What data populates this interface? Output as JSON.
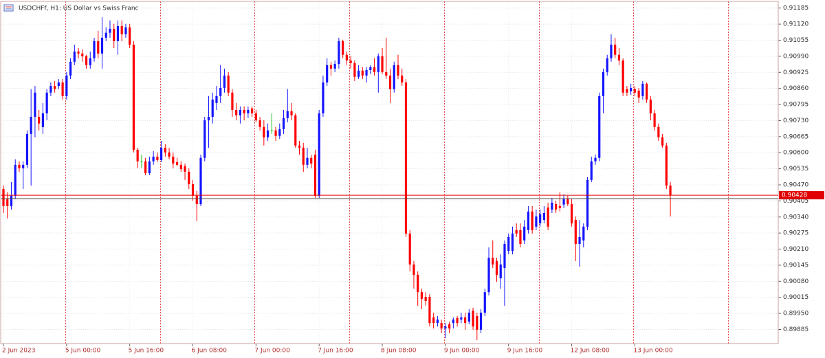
{
  "chart_data": {
    "type": "candlestick",
    "title": "USDCHFf, H1:  US Dollar vs Swiss Franc",
    "categories": [
      "2 Jun 2023",
      null,
      null,
      null,
      null,
      null,
      null,
      null,
      null,
      null,
      null,
      null,
      null,
      null,
      null,
      null,
      "5 Jun 00:00",
      null,
      null,
      null,
      null,
      null,
      null,
      null,
      null,
      null,
      null,
      null,
      null,
      null,
      null,
      null,
      "5 Jun 16:00",
      null,
      null,
      null,
      null,
      null,
      null,
      null,
      null,
      null,
      null,
      null,
      null,
      null,
      null,
      null,
      "6 Jun 08:00",
      null,
      null,
      null,
      null,
      null,
      null,
      null,
      null,
      null,
      null,
      null,
      null,
      null,
      null,
      null,
      "7 Jun 00:00",
      null,
      null,
      null,
      null,
      null,
      null,
      null,
      null,
      null,
      null,
      null,
      null,
      null,
      null,
      null,
      "7 Jun 16:00",
      null,
      null,
      null,
      null,
      null,
      null,
      null,
      null,
      null,
      null,
      null,
      null,
      null,
      null,
      null,
      "8 Jun 08:00",
      null,
      null,
      null,
      null,
      null,
      null,
      null,
      null,
      null,
      null,
      null,
      null,
      null,
      null,
      null,
      "9 Jun 00:00",
      null,
      null,
      null,
      null,
      null,
      null,
      null,
      null,
      null,
      null,
      null,
      null,
      null,
      null,
      null,
      "9 Jun 16:00",
      null,
      null,
      null,
      null,
      null,
      null,
      null,
      null,
      null,
      null,
      null,
      null,
      null,
      null,
      null,
      "12 Jun 08:00",
      null,
      null,
      null,
      null,
      null,
      null,
      null,
      null,
      null,
      null,
      null,
      null,
      null,
      null,
      null,
      "13 Jun 00:00",
      null,
      null,
      null,
      null,
      null,
      null,
      null,
      null,
      null
    ],
    "open": [
      0.90453,
      0.90412,
      0.90384,
      0.90426,
      0.90551,
      0.90537,
      0.90551,
      0.90676,
      0.90745,
      0.90745,
      0.90704,
      0.90759,
      0.90843,
      0.9087,
      0.9087,
      0.90884,
      0.90829,
      0.90912,
      0.90968,
      0.91009,
      0.91001,
      0.9099,
      0.90954,
      0.90982,
      0.91051,
      0.91001,
      0.91065,
      0.91085,
      0.91101,
      0.91051,
      0.91112,
      0.91079,
      0.91107,
      0.91037,
      0.90612,
      0.90565,
      0.90565,
      0.90517,
      0.90565,
      0.90584,
      0.9057,
      0.9062,
      0.90601,
      0.90584,
      0.90562,
      0.90551,
      0.90545,
      0.90523,
      0.90473,
      0.90426,
      0.90392,
      0.90579,
      0.90731,
      0.90745,
      0.90801,
      0.90829,
      0.90862,
      0.90912,
      0.90843,
      0.90773,
      0.90751,
      0.90773,
      0.90759,
      0.90779,
      0.90759,
      0.90731,
      0.90704,
      0.90662,
      0.9069,
      0.9069,
      0.90668,
      0.90695,
      0.9074,
      0.90768,
      0.90751,
      0.90629,
      0.9062,
      0.90551,
      0.90579,
      0.90592,
      0.90426,
      0.90759,
      0.90884,
      0.90954,
      0.9094,
      0.90959,
      0.91051,
      0.90996,
      0.90973,
      0.90962,
      0.90907,
      0.90932,
      0.90912,
      0.90934,
      0.90946,
      0.90926,
      0.9099,
      0.90926,
      0.90912,
      0.90857,
      0.90954,
      0.90912,
      0.90884,
      0.90273,
      0.90148,
      0.90106,
      0.90036,
      0.90017,
      0.90017,
      0.89934,
      0.89911,
      0.89911,
      0.89889,
      0.89906,
      0.89911,
      0.89931,
      0.89925,
      0.89934,
      0.89917,
      0.89961,
      0.89939,
      0.89884,
      0.89953,
      0.90036,
      0.90175,
      0.90162,
      0.90092,
      0.90134,
      0.90203,
      0.90203,
      0.90287,
      0.90287,
      0.90245,
      0.90287,
      0.90362,
      0.90301,
      0.90314,
      0.90328,
      0.90378,
      0.9037,
      0.90392,
      0.90384,
      0.9039,
      0.90412,
      0.90392,
      0.90328,
      0.90231,
      0.90245,
      0.90301,
      0.9049,
      0.90565,
      0.90579,
      0.90829,
      0.90926,
      0.90982,
      0.91037,
      0.90996,
      0.90973,
      0.90857,
      0.90848,
      0.90857,
      0.90851,
      0.90829,
      0.90879,
      0.90815,
      0.90759,
      0.90704,
      0.90662,
      0.90629,
      0.90467
    ],
    "high": [
      0.90467,
      0.9044,
      0.90481,
      0.90573,
      0.90565,
      0.90565,
      0.9069,
      0.90857,
      0.9087,
      0.90773,
      0.90801,
      0.90857,
      0.90884,
      0.9089,
      0.90898,
      0.90898,
      0.90926,
      0.90982,
      0.91037,
      0.91023,
      0.91018,
      0.90996,
      0.91009,
      0.91065,
      0.91093,
      0.91148,
      0.91107,
      0.91135,
      0.91121,
      0.91135,
      0.91135,
      0.91121,
      0.91121,
      0.91051,
      0.9062,
      0.90592,
      0.90579,
      0.90584,
      0.90606,
      0.90601,
      0.90648,
      0.90634,
      0.9062,
      0.90601,
      0.90579,
      0.90565,
      0.90556,
      0.90537,
      0.9049,
      0.90445,
      0.90592,
      0.90745,
      0.90829,
      0.90843,
      0.9087,
      0.90954,
      0.9094,
      0.90926,
      0.90857,
      0.90801,
      0.90787,
      0.90787,
      0.90787,
      0.90787,
      0.90773,
      0.90745,
      0.90731,
      0.90718,
      0.90759,
      0.90704,
      0.90718,
      0.90773,
      0.90857,
      0.90801,
      0.90759,
      0.90648,
      0.9064,
      0.9062,
      0.90592,
      0.90612,
      0.90773,
      0.90912,
      0.90982,
      0.90968,
      0.90973,
      0.91065,
      0.91057,
      0.91009,
      0.9099,
      0.90973,
      0.90954,
      0.90946,
      0.90946,
      0.90954,
      0.90982,
      0.91001,
      0.91023,
      0.91065,
      0.9094,
      0.90968,
      0.90996,
      0.9094,
      0.90898,
      0.90287,
      0.90162,
      0.9012,
      0.9005,
      0.90036,
      0.90028,
      0.89953,
      0.89939,
      0.89925,
      0.89911,
      0.89917,
      0.89934,
      0.89939,
      0.89953,
      0.89953,
      0.89967,
      0.89973,
      0.89953,
      0.89967,
      0.9005,
      0.90217,
      0.90245,
      0.90175,
      0.90189,
      0.90245,
      0.90273,
      0.90301,
      0.90314,
      0.90314,
      0.90328,
      0.90384,
      0.90384,
      0.9037,
      0.9037,
      0.90384,
      0.90398,
      0.90417,
      0.90406,
      0.9044,
      0.90431,
      0.90426,
      0.90412,
      0.90342,
      0.90328,
      0.90314,
      0.90501,
      0.90584,
      0.90592,
      0.90843,
      0.9094,
      0.90996,
      0.91079,
      0.91065,
      0.91023,
      0.90982,
      0.9087,
      0.90879,
      0.9087,
      0.90862,
      0.9089,
      0.90884,
      0.90829,
      0.90773,
      0.90718,
      0.90676,
      0.9064,
      0.90481
    ],
    "low": [
      0.90356,
      0.90334,
      0.9037,
      0.90412,
      0.90523,
      0.90453,
      0.90537,
      0.90467,
      0.90662,
      0.9069,
      0.90676,
      0.90731,
      0.90829,
      0.90843,
      0.90857,
      0.90815,
      0.90815,
      0.90898,
      0.90954,
      0.90982,
      0.90968,
      0.9094,
      0.9094,
      0.90968,
      0.90982,
      0.9094,
      0.91051,
      0.91065,
      0.91023,
      0.90996,
      0.91051,
      0.91065,
      0.91023,
      0.90601,
      0.90537,
      0.90537,
      0.90509,
      0.90509,
      0.90551,
      0.90562,
      0.90562,
      0.90584,
      0.90573,
      0.90537,
      0.90545,
      0.90523,
      0.9049,
      0.90453,
      0.90406,
      0.90323,
      0.90384,
      0.90565,
      0.9062,
      0.90718,
      0.90773,
      0.90801,
      0.90843,
      0.90829,
      0.90745,
      0.90731,
      0.90718,
      0.90731,
      0.9074,
      0.90745,
      0.90723,
      0.9069,
      0.90629,
      0.90648,
      0.90676,
      0.90648,
      0.90656,
      0.90676,
      0.90723,
      0.90731,
      0.9062,
      0.90592,
      0.90523,
      0.90537,
      0.90537,
      0.90417,
      0.90417,
      0.90745,
      0.9087,
      0.90912,
      0.90926,
      0.9094,
      0.90982,
      0.90954,
      0.9094,
      0.9089,
      0.90898,
      0.90898,
      0.90884,
      0.90918,
      0.90912,
      0.90843,
      0.90918,
      0.90898,
      0.90801,
      0.90843,
      0.90898,
      0.9087,
      0.90259,
      0.9012,
      0.9005,
      0.89981,
      0.89967,
      0.89981,
      0.89897,
      0.89889,
      0.89897,
      0.8987,
      0.8985,
      0.8987,
      0.89889,
      0.89897,
      0.89911,
      0.89884,
      0.89906,
      0.89884,
      0.89842,
      0.8987,
      0.89939,
      0.90023,
      0.90134,
      0.90078,
      0.9005,
      0.89981,
      0.90189,
      0.90189,
      0.90259,
      0.90217,
      0.90231,
      0.90273,
      0.90273,
      0.90287,
      0.90301,
      0.90314,
      0.90287,
      0.90356,
      0.90356,
      0.90362,
      0.90376,
      0.90384,
      0.90301,
      0.90162,
      0.90139,
      0.90217,
      0.90287,
      0.90481,
      0.90551,
      0.90565,
      0.90759,
      0.90912,
      0.90968,
      0.90982,
      0.90954,
      0.90829,
      0.90829,
      0.90834,
      0.90829,
      0.90801,
      0.90815,
      0.90801,
      0.90731,
      0.9069,
      0.90648,
      0.9062,
      0.90453,
      0.90342
    ],
    "close": [
      0.90384,
      0.90384,
      0.90426,
      0.90551,
      0.90537,
      0.90551,
      0.90676,
      0.90745,
      0.90843,
      0.90718,
      0.90759,
      0.90843,
      0.9087,
      0.90857,
      0.90884,
      0.90829,
      0.90912,
      0.90968,
      0.91009,
      0.91001,
      0.9099,
      0.90954,
      0.90982,
      0.91051,
      0.91001,
      0.91065,
      0.91085,
      0.91101,
      0.91051,
      0.91112,
      0.91079,
      0.91107,
      0.91037,
      0.90612,
      0.90565,
      0.90565,
      0.90517,
      0.90565,
      0.90584,
      0.9057,
      0.9062,
      0.90601,
      0.90584,
      0.90556,
      0.90551,
      0.90534,
      0.90523,
      0.90473,
      0.90426,
      0.90392,
      0.90579,
      0.90731,
      0.90745,
      0.90815,
      0.90829,
      0.90862,
      0.90912,
      0.90843,
      0.90773,
      0.90751,
      0.90773,
      0.90759,
      0.90773,
      0.90759,
      0.90731,
      0.90704,
      0.90662,
      0.9069,
      0.9069,
      0.90668,
      0.90695,
      0.9074,
      0.90768,
      0.90751,
      0.90629,
      0.9062,
      0.90551,
      0.90579,
      0.90556,
      0.90426,
      0.90759,
      0.90884,
      0.90954,
      0.9094,
      0.90959,
      0.91051,
      0.90996,
      0.90973,
      0.90962,
      0.90907,
      0.90932,
      0.90912,
      0.90934,
      0.90946,
      0.90926,
      0.9099,
      0.90926,
      0.90912,
      0.90857,
      0.90954,
      0.90912,
      0.90884,
      0.90273,
      0.90148,
      0.90106,
      0.90036,
      0.90009,
      0.9,
      0.89911,
      0.89911,
      0.89925,
      0.89889,
      0.89897,
      0.89889,
      0.89925,
      0.89911,
      0.89934,
      0.89911,
      0.89953,
      0.89897,
      0.89884,
      0.89953,
      0.90036,
      0.90175,
      0.90148,
      0.90106,
      0.90148,
      0.90231,
      0.90259,
      0.90273,
      0.90273,
      0.90231,
      0.90301,
      0.90362,
      0.90287,
      0.90342,
      0.90351,
      0.90356,
      0.90301,
      0.90398,
      0.9037,
      0.90376,
      0.90412,
      0.90392,
      0.90314,
      0.90231,
      0.90259,
      0.90301,
      0.9049,
      0.90565,
      0.90579,
      0.90829,
      0.90926,
      0.90982,
      0.91037,
      0.90996,
      0.90973,
      0.90843,
      0.90843,
      0.90862,
      0.90843,
      0.90823,
      0.90879,
      0.90815,
      0.90759,
      0.90704,
      0.90662,
      0.90629,
      0.90467,
      0.90428
    ],
    "up_color": "#1414ff",
    "down_color": "#ff0000",
    "doji_color": "#22c022",
    "ylim": [
      0.89828,
      0.91212
    ],
    "yticks": [
      0.91185,
      {
        "value": 0.9112,
        "label": "0.91120"
      },
      0.91055,
      {
        "value": 0.9099,
        "label": "0.90990"
      },
      0.90925,
      {
        "value": 0.9086,
        "label": "0.90860"
      },
      0.90795,
      {
        "value": 0.9073,
        "label": "0.90730"
      },
      0.90665,
      {
        "value": 0.906,
        "label": "0.90600"
      },
      0.90535,
      {
        "value": 0.9047,
        "label": "0.90470"
      },
      0.90405,
      {
        "value": 0.9034,
        "label": "0.90340"
      },
      0.90275,
      {
        "value": 0.9021,
        "label": "0.90210"
      },
      0.90145,
      {
        "value": 0.9008,
        "label": "0.90080"
      },
      0.90015,
      {
        "value": 0.8995,
        "label": "0.89950"
      },
      0.89885
    ],
    "last_price": 0.90428,
    "last_price_color": "#e00000",
    "bid_line": 0.90414,
    "grid": true
  }
}
